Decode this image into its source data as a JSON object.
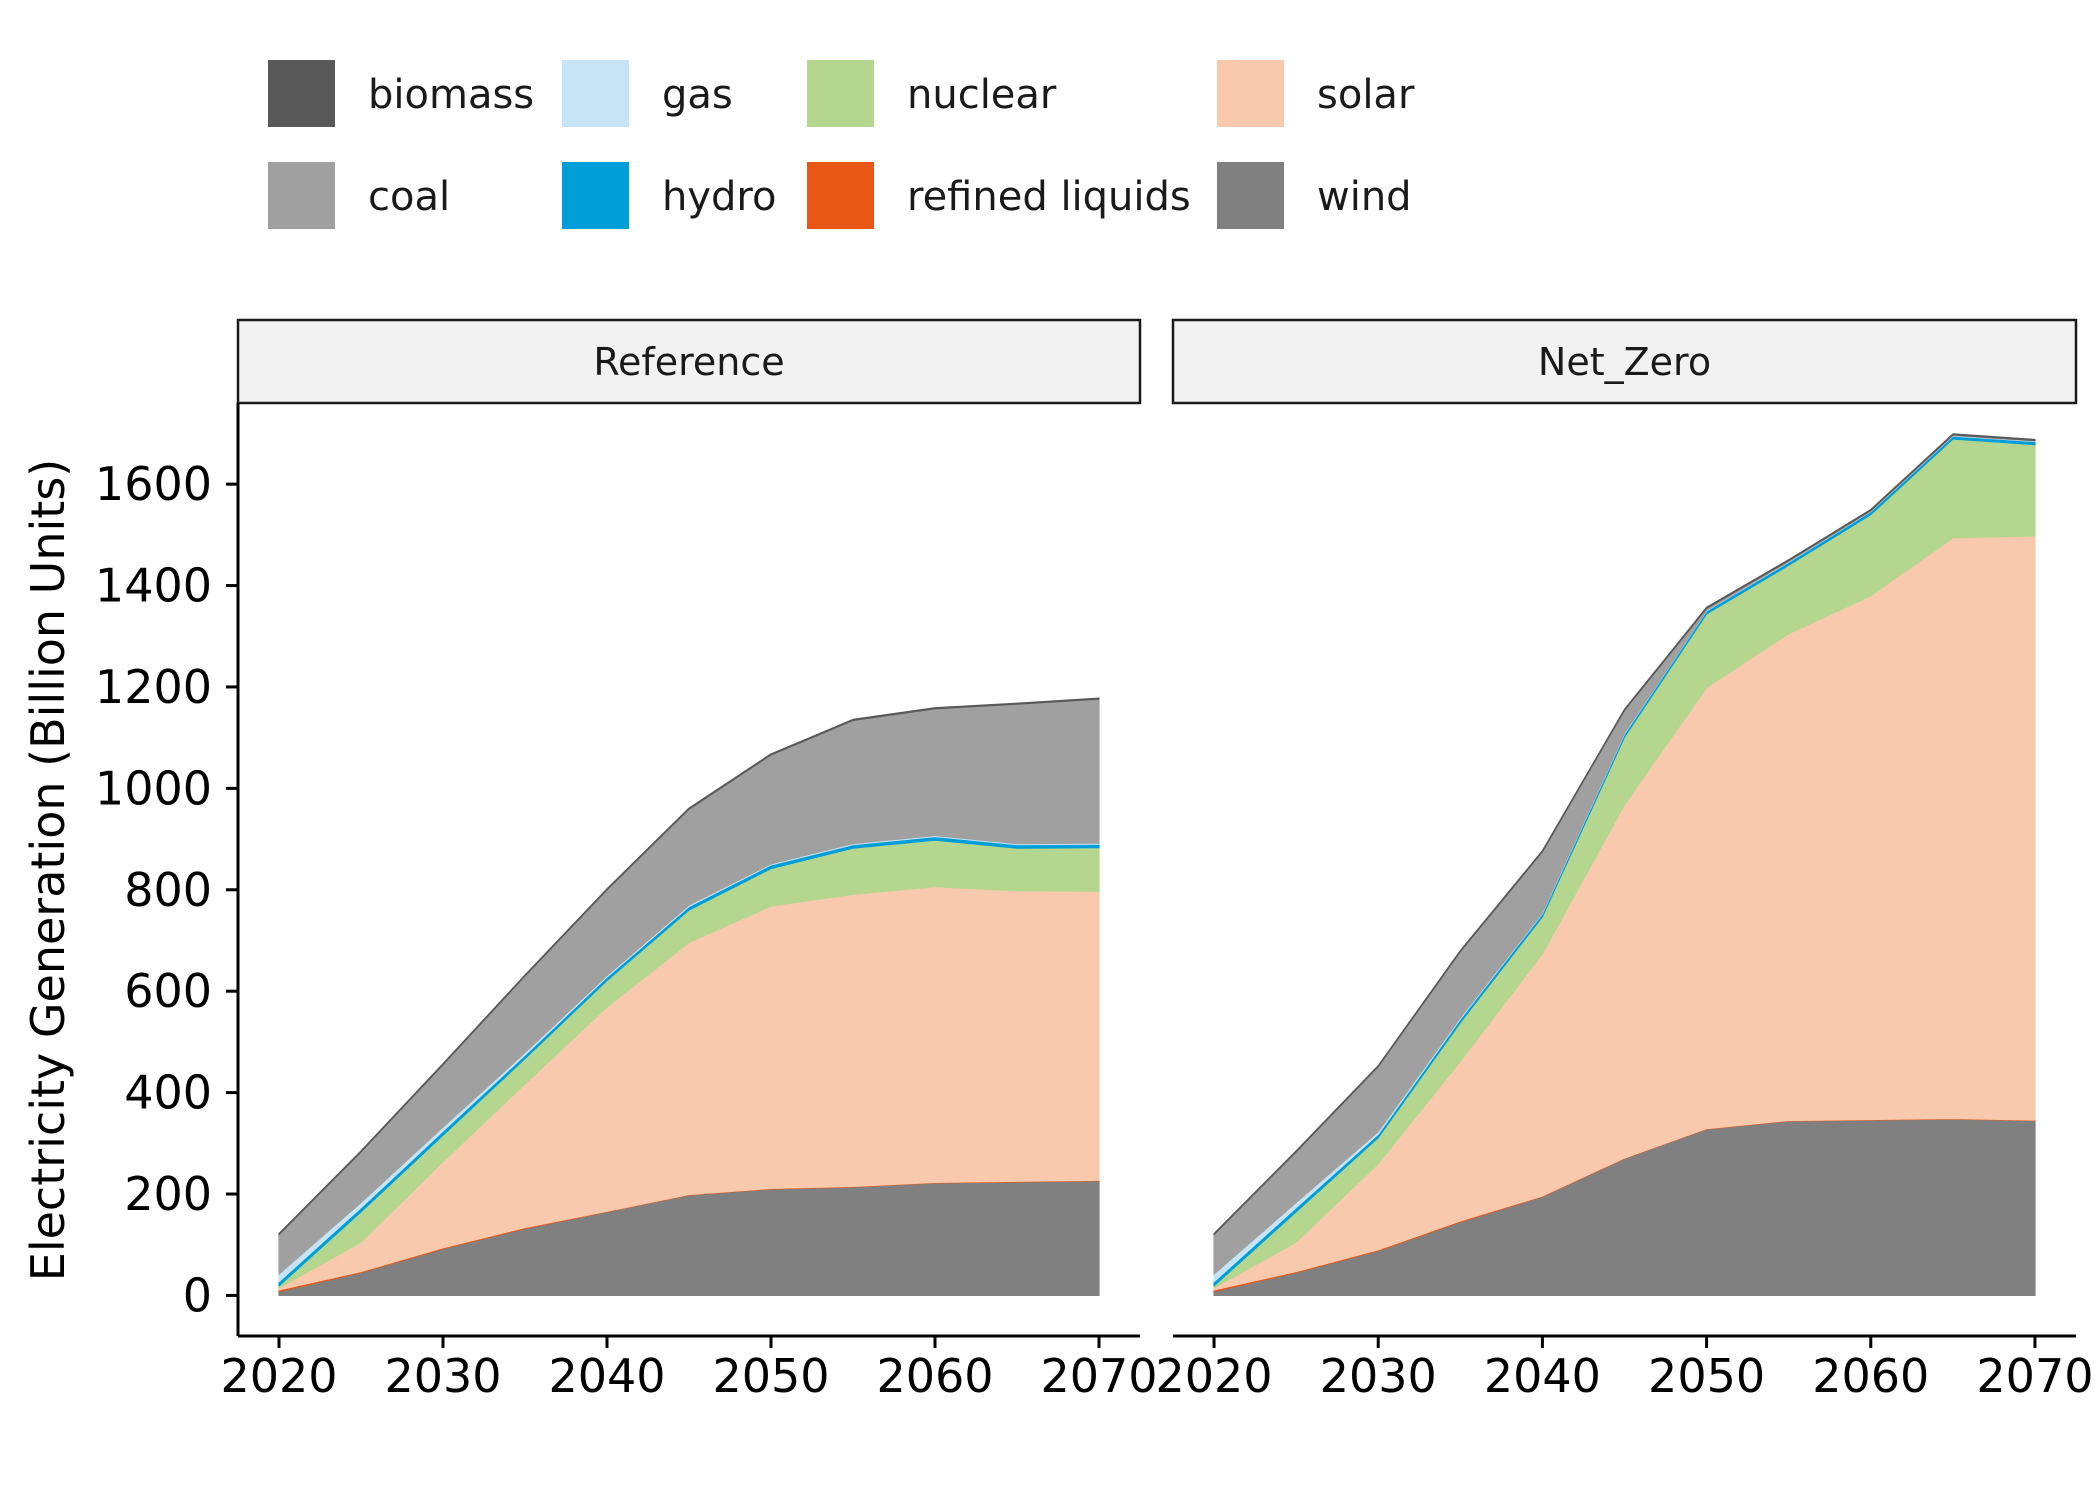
{
  "chart_data": {
    "type": "area",
    "stacked": true,
    "ylabel": "Electricity Generation (Billion Units)",
    "xlabel": "",
    "ylim": [
      -80,
      1760
    ],
    "xlim": [
      2017.5,
      2072.5
    ],
    "y_ticks": [
      0,
      200,
      400,
      600,
      800,
      1000,
      1200,
      1400,
      1600
    ],
    "x_ticks": [
      2020,
      2030,
      2040,
      2050,
      2060,
      2070
    ],
    "grid": false,
    "legend_position": "top",
    "x": [
      2020,
      2025,
      2030,
      2035,
      2040,
      2045,
      2050,
      2055,
      2060,
      2065,
      2070
    ],
    "stack_order": [
      "wind",
      "refined liquids",
      "solar",
      "nuclear",
      "hydro",
      "gas",
      "coal",
      "biomass"
    ],
    "legend": [
      {
        "name": "biomass",
        "color": "#595959"
      },
      {
        "name": "coal",
        "color": "#a0a0a0"
      },
      {
        "name": "gas",
        "color": "#c6e4f5"
      },
      {
        "name": "hydro",
        "color": "#009ed8"
      },
      {
        "name": "nuclear",
        "color": "#b5d68e"
      },
      {
        "name": "refined liquids",
        "color": "#e85716"
      },
      {
        "name": "solar",
        "color": "#f8c9ad"
      },
      {
        "name": "wind",
        "color": "#808080"
      }
    ],
    "panels": [
      {
        "name": "Reference",
        "series": [
          {
            "name": "wind",
            "values": [
              8,
              45,
              92,
              132,
              165,
              198,
              210,
              214,
              222,
              224,
              226
            ]
          },
          {
            "name": "refined liquids",
            "values": [
              3,
              2,
              2,
              2,
              1,
              1,
              1,
              1,
              1,
              1,
              1
            ]
          },
          {
            "name": "solar",
            "values": [
              4,
              58,
              170,
              283,
              403,
              497,
              557,
              576,
              583,
              573,
              570
            ]
          },
          {
            "name": "nuclear",
            "values": [
              4,
              60,
              52,
              50,
              52,
              64,
              74,
              91,
              92,
              84,
              86
            ]
          },
          {
            "name": "hydro",
            "values": [
              8,
              8,
              8,
              7,
              7,
              7,
              7,
              7,
              7,
              7,
              7
            ]
          },
          {
            "name": "gas",
            "values": [
              15,
              10,
              8,
              5,
              3,
              3,
              2,
              2,
              2,
              2,
              2
            ]
          },
          {
            "name": "coal",
            "values": [
              78,
              100,
              123,
              151,
              169,
              189,
              215,
              243,
              250,
              275,
              284
            ]
          },
          {
            "name": "biomass",
            "values": [
              2,
              2,
              2,
              2,
              2,
              2,
              2,
              2,
              2,
              2,
              2
            ]
          }
        ]
      },
      {
        "name": "Net_Zero",
        "series": [
          {
            "name": "wind",
            "values": [
              8,
              45,
              88,
              145,
              195,
              270,
              328,
              344,
              346,
              348,
              345
            ]
          },
          {
            "name": "refined liquids",
            "values": [
              3,
              2,
              2,
              2,
              1,
              1,
              1,
              1,
              1,
              1,
              1
            ]
          },
          {
            "name": "solar",
            "values": [
              4,
              58,
              170,
              315,
              478,
              697,
              870,
              960,
              1033,
              1145,
              1152
            ]
          },
          {
            "name": "nuclear",
            "values": [
              4,
              60,
              51,
              76,
              73,
              133,
              145,
              135,
              160,
              195,
              180
            ]
          },
          {
            "name": "hydro",
            "values": [
              8,
              8,
              7,
              7,
              6,
              6,
              6,
              6,
              6,
              6,
              6
            ]
          },
          {
            "name": "gas",
            "values": [
              15,
              10,
              5,
              3,
              2,
              2,
              1,
              1,
              1,
              1,
              1
            ]
          },
          {
            "name": "coal",
            "values": [
              78,
              100,
              128,
              130,
              120,
              45,
              4,
              2,
              1,
              1,
              1
            ]
          },
          {
            "name": "biomass",
            "values": [
              2,
              2,
              2,
              2,
              2,
              2,
              2,
              2,
              2,
              2,
              2
            ]
          }
        ]
      }
    ]
  }
}
